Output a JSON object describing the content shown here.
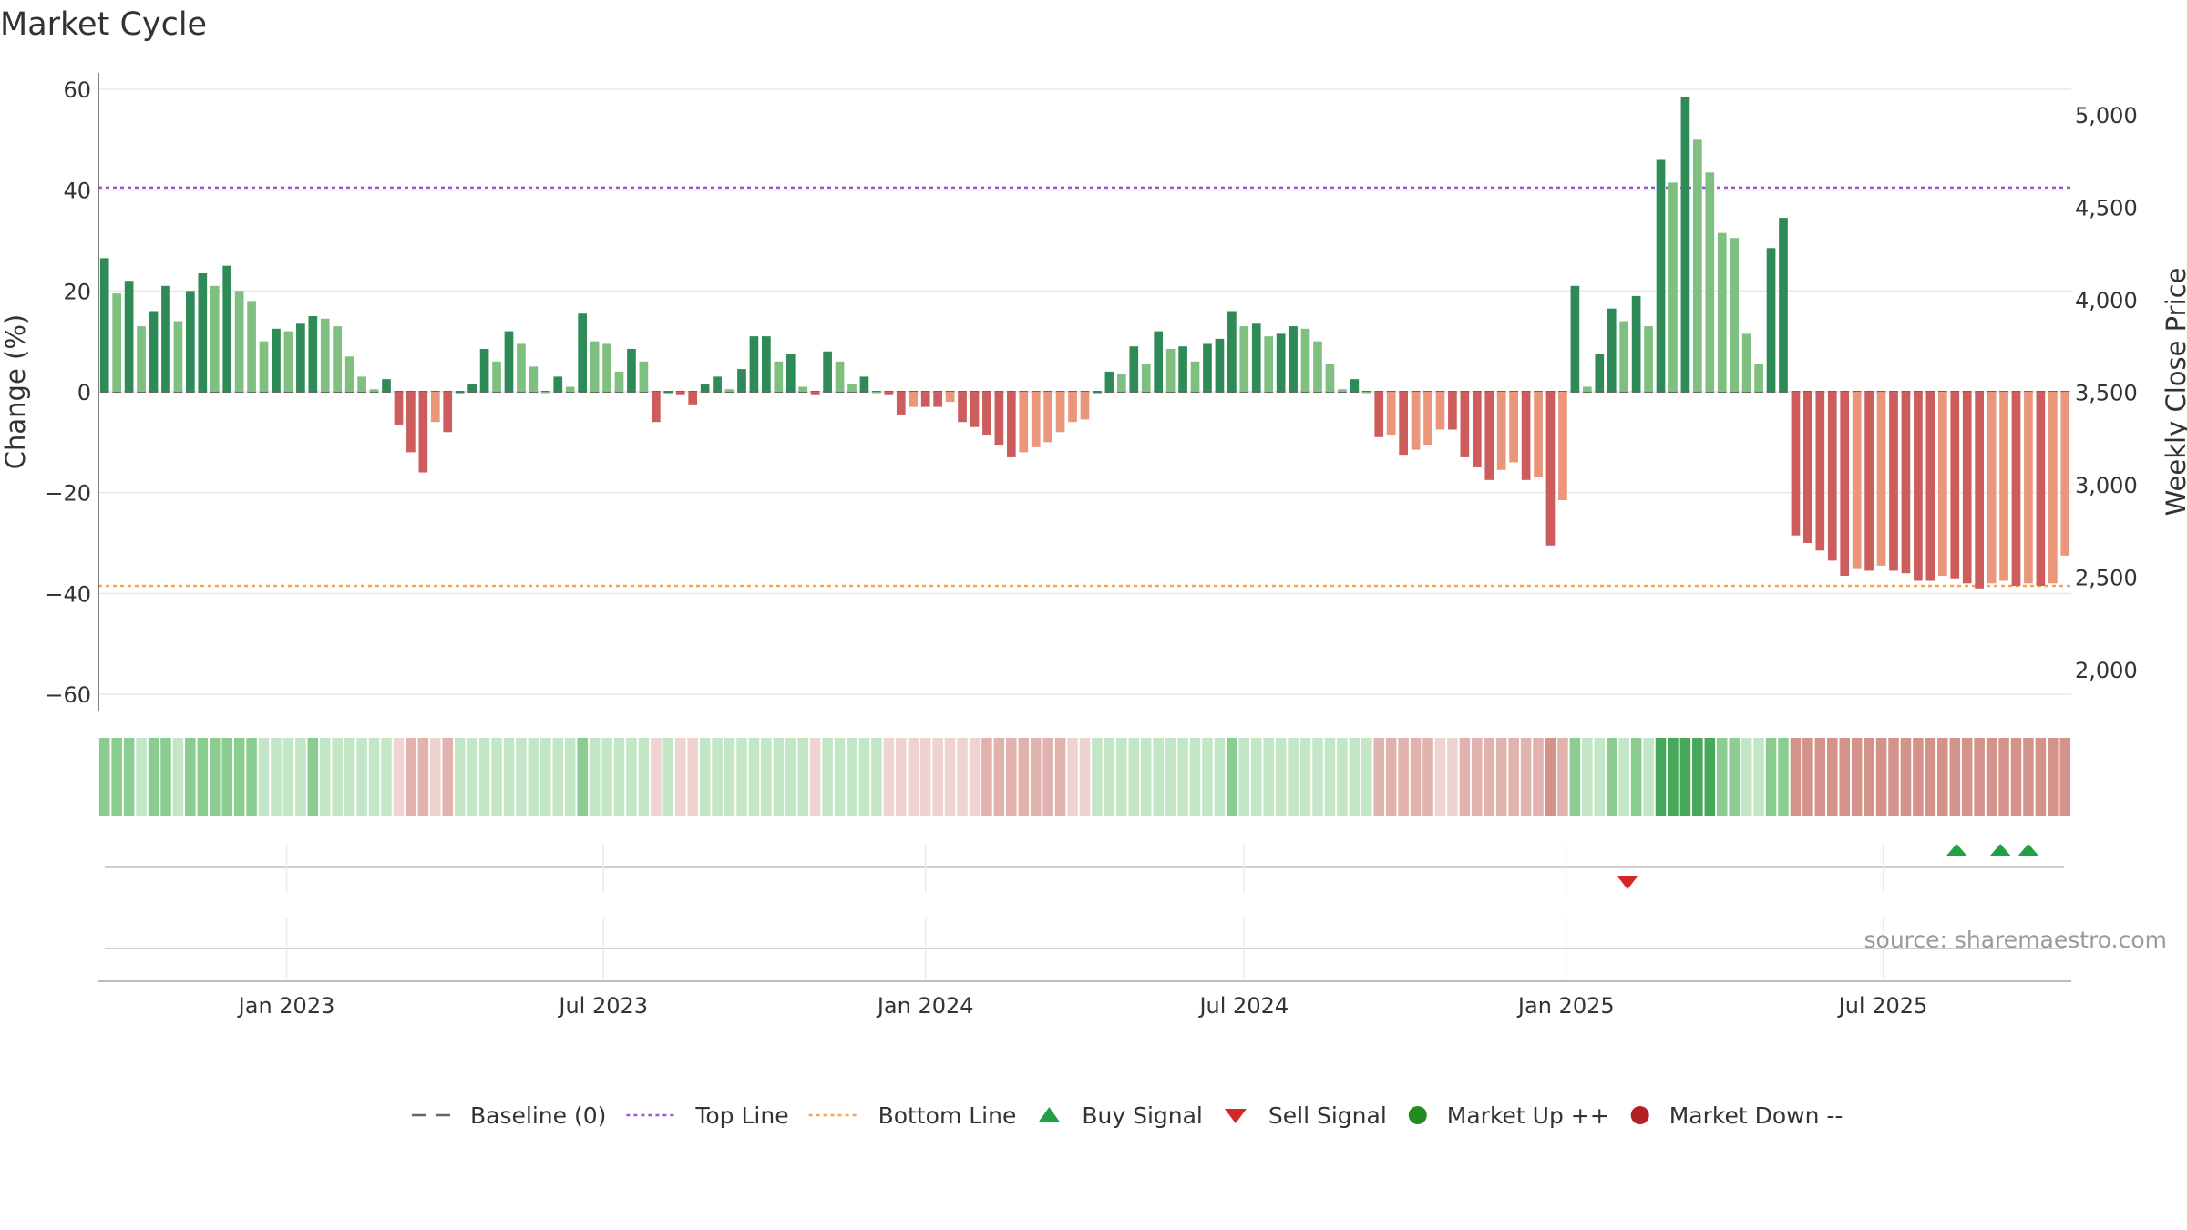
{
  "chart_data": {
    "type": "bar",
    "title": "Market Cycle",
    "ylabel": "Change (%)",
    "y2label": "Weekly Close Price",
    "ylim": [
      -60,
      60
    ],
    "y2lim": [
      2000,
      5000
    ],
    "yticks": [
      -60,
      -40,
      -20,
      0,
      20,
      40,
      60
    ],
    "yticks_labels": [
      "−60",
      "−40",
      "−20",
      "0",
      "20",
      "40",
      "60"
    ],
    "y2ticks": [
      2000,
      2500,
      3000,
      3500,
      4000,
      4500,
      5000
    ],
    "y2ticks_labels": [
      "2,000",
      "2,500",
      "3,000",
      "3,500",
      "4,000",
      "4,500",
      "5,000"
    ],
    "x_start": "2022-09-19",
    "x_step_days": 7,
    "xticks": [
      "2023-01-01",
      "2023-07-01",
      "2024-01-01",
      "2024-07-01",
      "2025-01-01",
      "2025-07-01"
    ],
    "xtick_labels": [
      "Jan 2023",
      "Jul 2023",
      "Jan 2024",
      "Jul 2024",
      "Jan 2025",
      "Jul 2025"
    ],
    "top_line": 40.5,
    "bottom_line": -38.5,
    "grid": true,
    "values": [
      26.5,
      19.5,
      22,
      13,
      16,
      21,
      14,
      20,
      23.5,
      21,
      25,
      20,
      18,
      10,
      12.5,
      12,
      13.5,
      15,
      14.5,
      13,
      7,
      3,
      0.5,
      2.5,
      -6.5,
      -12,
      -16,
      -6,
      -8,
      0,
      1.5,
      8.5,
      6,
      12,
      9.5,
      5,
      0,
      3,
      1,
      15.5,
      10,
      9.5,
      4,
      8.5,
      6,
      -6,
      0,
      -0.5,
      -2.5,
      1.5,
      3,
      0.5,
      4.5,
      11,
      11,
      6,
      7.5,
      1,
      -0.5,
      8,
      6,
      1.5,
      3,
      0,
      -0.5,
      -4.5,
      -3,
      -3,
      -3,
      -2,
      -6,
      -7,
      -8.5,
      -10.5,
      -13,
      -12,
      -11,
      -10,
      -8,
      -6,
      -5.5,
      0,
      4,
      3.5,
      9,
      5.5,
      12,
      8.5,
      9,
      6,
      9.5,
      10.5,
      16,
      13,
      13.5,
      11,
      11.5,
      13,
      12.5,
      10,
      5.5,
      0.5,
      2.5,
      0,
      -9,
      -8.5,
      -12.5,
      -11.5,
      -10.5,
      -7.5,
      -7.5,
      -13,
      -15,
      -17.5,
      -15.5,
      -14,
      -17.5,
      -17,
      -30.5,
      -21.5,
      21,
      1,
      7.5,
      16.5,
      14,
      19,
      13,
      46,
      41.5,
      58.5,
      50,
      43.5,
      31.5,
      30.5,
      11.5,
      5.5,
      28.5,
      34.5,
      -28.5,
      -30,
      -31.5,
      -33.5,
      -36.5,
      -35,
      -35.5,
      -34.5,
      -35.5,
      -36,
      -37.5,
      -37.5,
      -36.5,
      -37,
      -38,
      -39,
      -38,
      -37.5,
      -38.5,
      -38,
      -38.5,
      -38,
      -32.5
    ],
    "bar_colors": {
      "up_strong": "#2e8b57",
      "up_weak": "#7fbf7f",
      "down_strong": "#cd5c5c",
      "down_weak": "#e9967a"
    },
    "ribbon_colors": {
      "green_strong": "#46a85a",
      "green_mid": "#8bcc91",
      "green_light": "#c3e6c7",
      "red_strong": "#d4938a",
      "red_mid": "#e2b3ae",
      "red_light": "#efd3d0"
    },
    "sell_signals": [
      "2025-02-05"
    ],
    "buy_signals": [
      "2025-08-12",
      "2025-09-06",
      "2025-09-22"
    ],
    "line_colors": {
      "top_line": "#9b59d0",
      "bottom_line": "#f2a654",
      "baseline": "#666666",
      "buy": "#22a045",
      "sell": "#d62728",
      "market_up": "#228b22",
      "market_down": "#b22222"
    },
    "legend": [
      {
        "label": "Baseline (0)",
        "kind": "baseline"
      },
      {
        "label": "Top Line",
        "kind": "top"
      },
      {
        "label": "Bottom Line",
        "kind": "bottom"
      },
      {
        "label": "Buy Signal",
        "kind": "buy"
      },
      {
        "label": "Sell Signal",
        "kind": "sell"
      },
      {
        "label": "Market Up ++",
        "kind": "up"
      },
      {
        "label": "Market Down --",
        "kind": "down"
      }
    ],
    "legend_position": "bottom-center",
    "source": "source: sharemaestro.com"
  }
}
